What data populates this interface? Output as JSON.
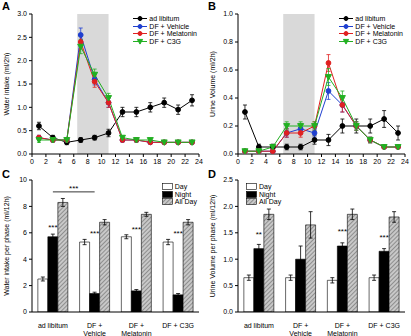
{
  "chart_data": [
    {
      "type": "line",
      "title": "A",
      "y_label": "Water intake (ml/2h)",
      "grid": false,
      "legend": "upper right",
      "x": [
        1,
        3,
        5,
        7,
        9,
        11,
        13,
        15,
        17,
        19,
        21,
        23
      ],
      "xlim": [
        0,
        24
      ],
      "xticks": [
        0,
        2,
        4,
        6,
        8,
        10,
        12,
        14,
        16,
        18,
        20,
        22,
        24
      ],
      "ylim": [
        0,
        3
      ],
      "yticks": [
        {
          "value": 0,
          "label": "0.0"
        },
        {
          "value": 0.5,
          "label": "0.5"
        },
        {
          "value": 1,
          "label": "1.0"
        },
        {
          "value": 1.5,
          "label": "1.5"
        },
        {
          "value": 2,
          "label": "2.0"
        },
        {
          "value": 2.5,
          "label": "2.5"
        },
        {
          "value": 3,
          "label": "3.0"
        }
      ],
      "shaded_range": [
        6.5,
        11
      ],
      "series": [
        {
          "name": "ad libitum",
          "color": "#000000",
          "marker": "circle",
          "values": [
            0.6,
            0.35,
            0.25,
            0.3,
            0.35,
            0.45,
            0.9,
            0.9,
            1.0,
            1.1,
            0.95,
            1.15
          ],
          "errors": [
            0.08,
            0.05,
            0.05,
            0.05,
            0.05,
            0.08,
            0.1,
            0.1,
            0.1,
            0.1,
            0.1,
            0.12
          ]
        },
        {
          "name": "DF + Vehicle",
          "color": "#1f3fd0",
          "marker": "circle",
          "values": [
            0.35,
            0.3,
            0.3,
            2.55,
            1.6,
            1.1,
            0.3,
            0.3,
            0.25,
            0.25,
            0.25,
            0.25
          ],
          "errors": [
            0.05,
            0.04,
            0.04,
            0.15,
            0.12,
            0.1,
            0.04,
            0.04,
            0.03,
            0.03,
            0.03,
            0.03
          ]
        },
        {
          "name": "DF + Melatonin",
          "color": "#e02020",
          "marker": "circle",
          "values": [
            0.35,
            0.3,
            0.3,
            2.4,
            1.55,
            1.1,
            0.3,
            0.3,
            0.25,
            0.25,
            0.25,
            0.25
          ],
          "errors": [
            0.05,
            0.04,
            0.04,
            0.15,
            0.12,
            0.1,
            0.04,
            0.04,
            0.03,
            0.03,
            0.03,
            0.03
          ]
        },
        {
          "name": "DF + C3G",
          "color": "#22b022",
          "marker": "triangle",
          "values": [
            0.3,
            0.3,
            0.3,
            2.3,
            1.7,
            1.2,
            0.35,
            0.3,
            0.3,
            0.25,
            0.25,
            0.25
          ],
          "errors": [
            0.05,
            0.04,
            0.04,
            0.15,
            0.12,
            0.1,
            0.04,
            0.04,
            0.03,
            0.03,
            0.03,
            0.03
          ]
        }
      ]
    },
    {
      "type": "line",
      "title": "B",
      "y_label": "Urine Volume (ml/2h)",
      "grid": false,
      "legend": "upper right",
      "x": [
        1,
        3,
        5,
        7,
        9,
        11,
        13,
        15,
        17,
        19,
        21,
        23
      ],
      "xlim": [
        0,
        24
      ],
      "xticks": [
        0,
        2,
        4,
        6,
        8,
        10,
        12,
        14,
        16,
        18,
        20,
        22,
        24
      ],
      "ylim": [
        0,
        1
      ],
      "yticks": [
        {
          "value": 0,
          "label": "0.0"
        },
        {
          "value": 0.2,
          "label": "0.2"
        },
        {
          "value": 0.4,
          "label": "0.4"
        },
        {
          "value": 0.6,
          "label": "0.6"
        },
        {
          "value": 0.8,
          "label": "0.8"
        },
        {
          "value": 1,
          "label": "1.0"
        }
      ],
      "shaded_range": [
        6.5,
        11
      ],
      "series": [
        {
          "name": "ad libitum",
          "color": "#000000",
          "marker": "circle",
          "values": [
            0.3,
            0.05,
            0.05,
            0.05,
            0.05,
            0.1,
            0.1,
            0.2,
            0.2,
            0.2,
            0.25,
            0.15
          ],
          "errors": [
            0.05,
            0.02,
            0.02,
            0.02,
            0.02,
            0.03,
            0.04,
            0.05,
            0.05,
            0.05,
            0.06,
            0.05
          ]
        },
        {
          "name": "DF + Vehicle",
          "color": "#1f3fd0",
          "marker": "circle",
          "values": [
            0.02,
            0.02,
            0.02,
            0.15,
            0.18,
            0.15,
            0.45,
            0.35,
            0.2,
            0.1,
            0.05,
            0.05
          ],
          "errors": [
            0.01,
            0.01,
            0.01,
            0.03,
            0.03,
            0.03,
            0.06,
            0.05,
            0.03,
            0.02,
            0.01,
            0.01
          ]
        },
        {
          "name": "DF + Melatonin",
          "color": "#e02020",
          "marker": "circle",
          "values": [
            0.02,
            0.02,
            0.02,
            0.15,
            0.15,
            0.2,
            0.65,
            0.35,
            0.2,
            0.1,
            0.05,
            0.05
          ],
          "errors": [
            0.01,
            0.01,
            0.01,
            0.03,
            0.03,
            0.03,
            0.06,
            0.05,
            0.03,
            0.02,
            0.01,
            0.01
          ]
        },
        {
          "name": "DF + C3G",
          "color": "#22b022",
          "marker": "triangle",
          "values": [
            0.02,
            0.02,
            0.05,
            0.2,
            0.2,
            0.2,
            0.55,
            0.4,
            0.2,
            0.1,
            0.05,
            0.05
          ],
          "errors": [
            0.01,
            0.01,
            0.01,
            0.03,
            0.03,
            0.03,
            0.06,
            0.05,
            0.03,
            0.02,
            0.01,
            0.01
          ]
        }
      ]
    },
    {
      "type": "bar",
      "title": "C",
      "y_label": "Water intake per phase (ml/12h)",
      "grid": false,
      "legend": "upper right",
      "categories": [
        "ad libitum",
        "DF +\nVehicle",
        "DF +\nMelatonin",
        "DF + C3G"
      ],
      "ylim": [
        0,
        10
      ],
      "yticks": [
        0,
        2,
        4,
        6,
        8,
        10
      ],
      "series": [
        {
          "name": "Day",
          "color": "#ffffff",
          "values": [
            2.5,
            5.3,
            5.7,
            5.3
          ],
          "errors": [
            0.15,
            0.2,
            0.15,
            0.2
          ]
        },
        {
          "name": "Night",
          "color": "#000000",
          "values": [
            5.7,
            1.4,
            1.6,
            1.3
          ],
          "errors": [
            0.2,
            0.1,
            0.1,
            0.1
          ]
        },
        {
          "name": "All Day",
          "color": "#c8c8c8",
          "values": [
            8.3,
            6.8,
            7.4,
            6.8
          ],
          "errors": [
            0.3,
            0.2,
            0.15,
            0.2
          ]
        }
      ],
      "annotations": [
        {
          "text": "***",
          "x": "ad libitum",
          "y": 6.1
        },
        {
          "text": "***",
          "x": "DF +\nVehicle",
          "y": 5.7
        },
        {
          "text": "***",
          "x": "DF +\nMelatonin",
          "y": 6.0
        },
        {
          "text": "***",
          "x": "DF + C3G",
          "y": 5.7
        },
        {
          "text": "***",
          "x": [
            "ad libitum",
            "DF +\nVehicle"
          ],
          "y": 9.1
        }
      ]
    },
    {
      "type": "bar",
      "title": "D",
      "y_label": "Urine Volume per phase (ml/12h)",
      "grid": false,
      "legend": "upper left",
      "categories": [
        "ad libitum",
        "DF +\nVehicle",
        "DF +\nMelatonin",
        "DF + C3G"
      ],
      "ylim": [
        0,
        2.5
      ],
      "yticks": [
        {
          "value": 0,
          "label": "0.0"
        },
        {
          "value": 0.5,
          "label": "0.5"
        },
        {
          "value": 1,
          "label": "1.0"
        },
        {
          "value": 1.5,
          "label": "1.5"
        },
        {
          "value": 2,
          "label": "2.0"
        },
        {
          "value": 2.5,
          "label": "2.5"
        }
      ],
      "series": [
        {
          "name": "Day",
          "color": "#ffffff",
          "values": [
            0.65,
            0.65,
            0.6,
            0.65
          ],
          "errors": [
            0.05,
            0.05,
            0.05,
            0.05
          ]
        },
        {
          "name": "Night",
          "color": "#000000",
          "values": [
            1.2,
            1.0,
            1.25,
            1.15
          ],
          "errors": [
            0.08,
            0.25,
            0.06,
            0.05
          ]
        },
        {
          "name": "All Day",
          "color": "#c8c8c8",
          "values": [
            1.85,
            1.65,
            1.85,
            1.8
          ],
          "errors": [
            0.1,
            0.25,
            0.1,
            0.1
          ]
        }
      ],
      "annotations": [
        {
          "text": "**",
          "x": "ad libitum",
          "y": 1.4
        },
        {
          "text": "***",
          "x": "DF +\nMelatonin",
          "y": 1.45
        },
        {
          "text": "***",
          "x": "DF + C3G",
          "y": 1.35
        }
      ]
    }
  ]
}
